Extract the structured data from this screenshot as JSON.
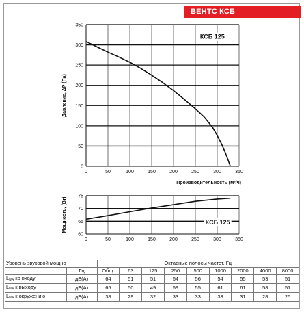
{
  "brand": {
    "text": "ВЕНТС КСБ",
    "color": "#e31e24"
  },
  "chart_data": [
    {
      "type": "line",
      "curve_label": "КСБ 125",
      "xlabel": "Производительность (м³/ч)",
      "ylabel": "Давление, ΔP (Па)",
      "xlim": [
        0,
        350
      ],
      "ylim": [
        0,
        350
      ],
      "xticks": [
        0,
        50,
        100,
        150,
        200,
        250,
        300,
        350
      ],
      "yticks": [
        0,
        50,
        100,
        150,
        200,
        250,
        300,
        350
      ],
      "grid": true,
      "series": [
        {
          "x": [
            0,
            25,
            50,
            75,
            100,
            125,
            150,
            175,
            200,
            225,
            250,
            270,
            290,
            300,
            310,
            318,
            325,
            330
          ],
          "y": [
            308,
            295,
            282,
            270,
            257,
            242,
            225,
            207,
            187,
            165,
            142,
            122,
            95,
            76,
            55,
            35,
            15,
            0
          ]
        }
      ]
    },
    {
      "type": "line",
      "curve_label": "КСБ 125",
      "xlabel": "",
      "ylabel": "Мощность, (Вт)",
      "xlim": [
        0,
        350
      ],
      "ylim": [
        60,
        75
      ],
      "xticks": [
        0,
        50,
        100,
        150,
        200,
        250,
        300,
        350
      ],
      "yticks": [
        60,
        65,
        70,
        75
      ],
      "grid": true,
      "series": [
        {
          "x": [
            0,
            50,
            100,
            150,
            200,
            250,
            300,
            330
          ],
          "y": [
            65.8,
            67.2,
            68.7,
            70.2,
            71.5,
            72.8,
            73.7,
            74.0
          ]
        }
      ]
    }
  ],
  "sound_table": {
    "title": "Уровень звуковой мощности",
    "unit_hz": "Гц",
    "octave_title": "Октавные полосы частот, Гц",
    "frequencies": [
      "Общ.",
      "63",
      "125",
      "250",
      "500",
      "1000",
      "2000",
      "4000",
      "8000"
    ],
    "rows": [
      {
        "label_main": "L",
        "label_sub": "wA",
        "label_rest": " ко входу",
        "unit": "дБ(A)",
        "values": [
          "64",
          "51",
          "51",
          "54",
          "56",
          "54",
          "55",
          "53",
          "51"
        ]
      },
      {
        "label_main": "L",
        "label_sub": "wA",
        "label_rest": " к выходу",
        "unit": "дБ(A)",
        "values": [
          "65",
          "50",
          "49",
          "59",
          "55",
          "61",
          "61",
          "58",
          "51"
        ]
      },
      {
        "label_main": "L",
        "label_sub": "wA",
        "label_rest": " к окружению",
        "unit": "дБ(A)",
        "values": [
          "38",
          "29",
          "32",
          "33",
          "33",
          "33",
          "31",
          "28",
          "25"
        ]
      }
    ]
  }
}
